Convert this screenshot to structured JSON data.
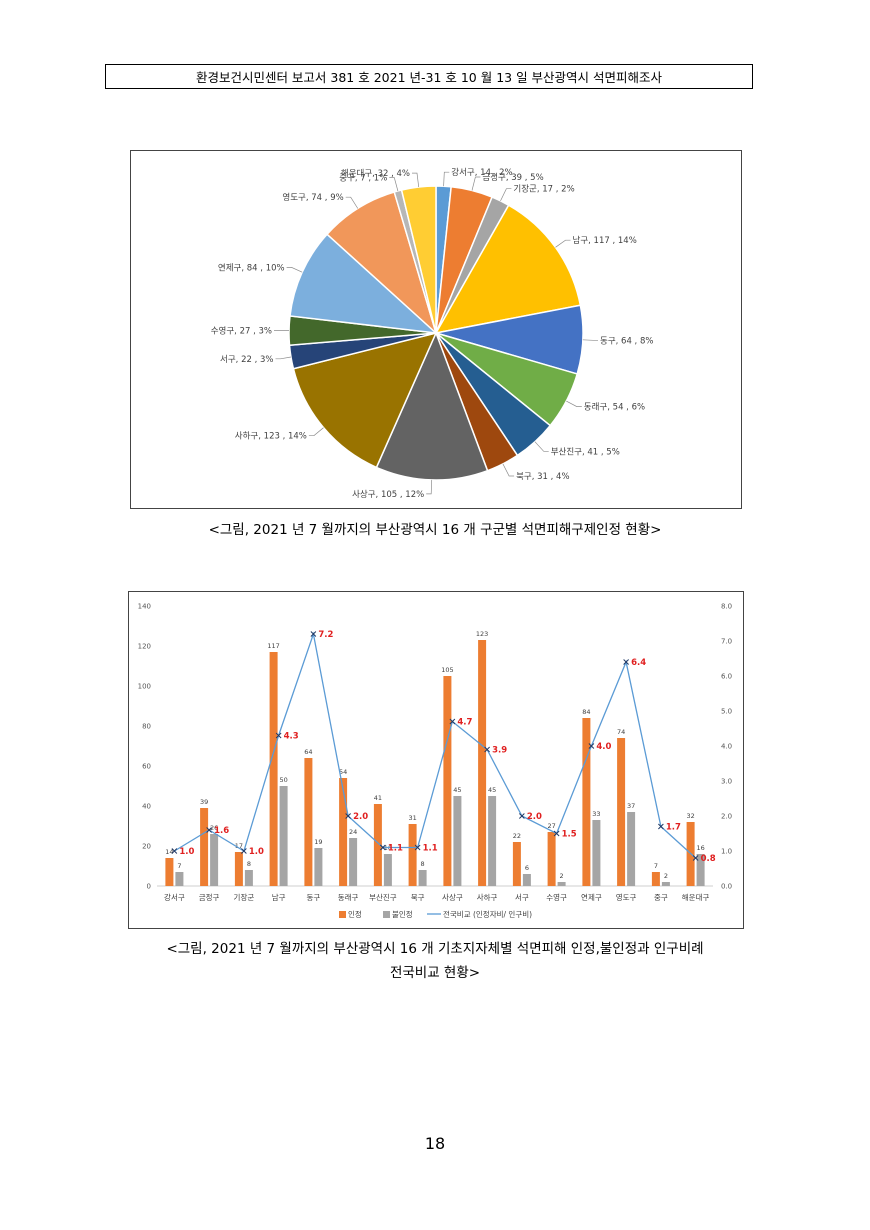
{
  "header": {
    "text": "환경보건시민센터 보고서 381 호 2021 년-31 호 10 월 13 일 부산광역시 석면피해조사"
  },
  "captions": {
    "pie": "<그림, 2021 년 7 월까지의 부산광역시 16 개 구군별 석면피해구제인정 현황>",
    "bar_line1": "<그림, 2021 년 7 월까지의 부산광역시 16 개 기초지자체별 석면피해 인정,불인정과 인구비례",
    "bar_line2": "전국비교 현황>"
  },
  "page_number": "18",
  "chart_data": [
    {
      "type": "pie",
      "slices": [
        {
          "label": "강서구, 14 , 2%",
          "name": "강서구",
          "value": 14,
          "pct": 2,
          "color": "#5B9BD5"
        },
        {
          "label": "금정구, 39 , 5%",
          "name": "금정구",
          "value": 39,
          "pct": 5,
          "color": "#ED7D31"
        },
        {
          "label": "기장군, 17 , 2%",
          "name": "기장군",
          "value": 17,
          "pct": 2,
          "color": "#A5A5A5"
        },
        {
          "label": "남구, 117 , 14%",
          "name": "남구",
          "value": 117,
          "pct": 14,
          "color": "#FFC000"
        },
        {
          "label": "동구, 64 , 8%",
          "name": "동구",
          "value": 64,
          "pct": 8,
          "color": "#4472C4"
        },
        {
          "label": "동래구, 54 , 6%",
          "name": "동래구",
          "value": 54,
          "pct": 6,
          "color": "#70AD47"
        },
        {
          "label": "부산진구, 41 , 5%",
          "name": "부산진구",
          "value": 41,
          "pct": 5,
          "color": "#255E91"
        },
        {
          "label": "북구, 31 , 4%",
          "name": "북구",
          "value": 31,
          "pct": 4,
          "color": "#9E480E"
        },
        {
          "label": "사상구, 105 , 12%",
          "name": "사상구",
          "value": 105,
          "pct": 12,
          "color": "#636363"
        },
        {
          "label": "사하구, 123 , 14%",
          "name": "사하구",
          "value": 123,
          "pct": 14,
          "color": "#997300"
        },
        {
          "label": "서구, 22 , 3%",
          "name": "서구",
          "value": 22,
          "pct": 3,
          "color": "#264478"
        },
        {
          "label": "수영구, 27 , 3%",
          "name": "수영구",
          "value": 27,
          "pct": 3,
          "color": "#43682B"
        },
        {
          "label": "연제구, 84 , 10%",
          "name": "연제구",
          "value": 84,
          "pct": 10,
          "color": "#7CAFDD"
        },
        {
          "label": "영도구, 74 , 9%",
          "name": "영도구",
          "value": 74,
          "pct": 9,
          "color": "#F1975A"
        },
        {
          "label": "중구, 7 , 1%",
          "name": "중구",
          "value": 7,
          "pct": 1,
          "color": "#B7B7B7"
        },
        {
          "label": "해운대구, 32 , 4%",
          "name": "해운대구",
          "value": 32,
          "pct": 4,
          "color": "#FFCD33"
        }
      ]
    },
    {
      "type": "bar",
      "categories": [
        "강서구",
        "금정구",
        "기장군",
        "남구",
        "동구",
        "동래구",
        "부산진구",
        "북구",
        "사상구",
        "사하구",
        "서구",
        "수영구",
        "연제구",
        "영도구",
        "중구",
        "해운대구"
      ],
      "series": [
        {
          "name": "인정",
          "type": "bar",
          "axis": "left",
          "color": "#ED7D31",
          "values": [
            14,
            39,
            17,
            117,
            64,
            54,
            41,
            31,
            105,
            123,
            22,
            27,
            84,
            74,
            7,
            32
          ]
        },
        {
          "name": "불인정",
          "type": "bar",
          "axis": "left",
          "color": "#A5A5A5",
          "values": [
            7,
            26,
            8,
            50,
            19,
            24,
            16,
            8,
            45,
            45,
            6,
            2,
            33,
            37,
            2,
            16
          ]
        },
        {
          "name": "전국비교 (인정자비/ 인구비)",
          "type": "line",
          "axis": "right",
          "color": "#5B9BD5",
          "label_color": "#E02020",
          "values": [
            1.0,
            1.6,
            1.0,
            4.3,
            7.2,
            2.0,
            1.1,
            1.1,
            4.7,
            3.9,
            2.0,
            1.5,
            4.0,
            6.4,
            1.7,
            0.8
          ]
        }
      ],
      "ylim_left": [
        0,
        140
      ],
      "yticks_left": [
        "0",
        "20",
        "40",
        "60",
        "80",
        "100",
        "120",
        "140"
      ],
      "ylim_right": [
        0,
        8
      ],
      "yticks_right": [
        "0.0",
        "1.0",
        "2.0",
        "3.0",
        "4.0",
        "5.0",
        "6.0",
        "7.0",
        "8.0"
      ],
      "legend_position": "bottom"
    }
  ]
}
